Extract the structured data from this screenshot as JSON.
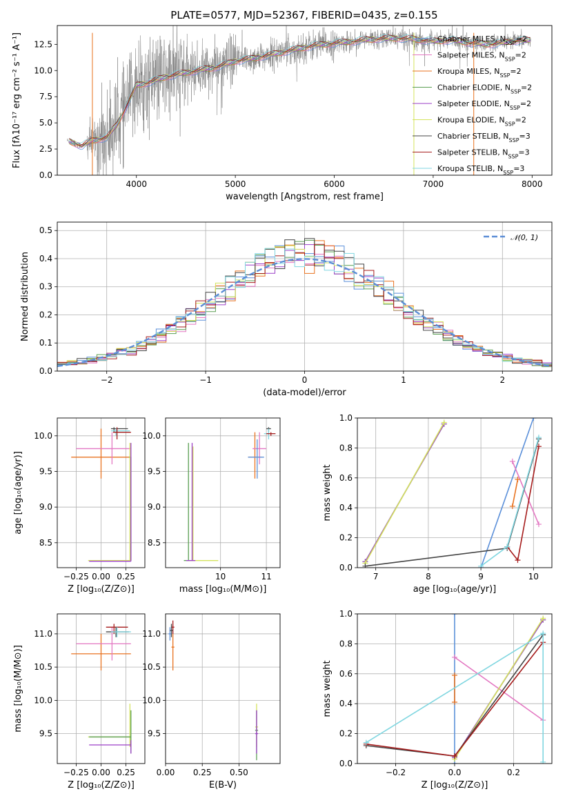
{
  "figure": {
    "title": "PLATE=0577, MJD=52367, FIBERID=0435, z=0.155"
  },
  "models": [
    {
      "name": "Chabrier MILES",
      "nssp": 2,
      "color": "#5a8fd9"
    },
    {
      "name": "Salpeter MILES",
      "nssp": 2,
      "color": "#e377c2"
    },
    {
      "name": "Kroupa MILES",
      "nssp": 2,
      "color": "#e8711d"
    },
    {
      "name": "Chabrier ELODIE",
      "nssp": 2,
      "color": "#5a9e52"
    },
    {
      "name": "Salpeter ELODIE",
      "nssp": 2,
      "color": "#9b3fc7"
    },
    {
      "name": "Kroupa ELODIE",
      "nssp": 2,
      "color": "#d4e35c"
    },
    {
      "name": "Chabrier STELIB",
      "nssp": 3,
      "color": "#444444"
    },
    {
      "name": "Salpeter STELIB",
      "nssp": 3,
      "color": "#a51a1a"
    },
    {
      "name": "Kroupa STELIB",
      "nssp": 3,
      "color": "#7fd6e0"
    }
  ],
  "chart_data": [
    {
      "id": "spectrum",
      "type": "line",
      "xlabel": "wavelength [Angstrom, rest frame]",
      "ylabel": "Flux [fλ10⁻¹⁷ erg cm⁻² s⁻¹ A⁻¹]",
      "xlim": [
        3200,
        8200
      ],
      "ylim": [
        0,
        14.3
      ],
      "xticks": [
        4000,
        5000,
        6000,
        7000,
        8000
      ],
      "yticks": [
        0.0,
        2.5,
        5.0,
        7.5,
        10.0,
        12.5
      ],
      "grid": false,
      "legend": "right",
      "data_color": "#808080",
      "continuum": {
        "x": [
          3300,
          3450,
          3550,
          3700,
          3800,
          3900,
          4000,
          4100,
          4300,
          4500,
          4800,
          5000,
          5200,
          5400,
          5600,
          5800,
          6000,
          6200,
          6400,
          6600,
          6800,
          7000,
          7200,
          7400,
          7600,
          7800,
          8000
        ],
        "y": [
          3.3,
          2.8,
          3.3,
          3.6,
          4.8,
          6.6,
          8.6,
          8.8,
          9.4,
          9.8,
          10.3,
          10.9,
          11.2,
          11.6,
          12.0,
          12.4,
          12.6,
          12.8,
          13.0,
          13.1,
          13.0,
          12.8,
          12.9,
          12.6,
          12.5,
          12.8,
          12.9
        ]
      }
    },
    {
      "id": "residuals",
      "type": "line",
      "xlabel": "(data-model)/error",
      "ylabel": "Normed distribution",
      "xlim": [
        -2.5,
        2.5
      ],
      "ylim": [
        0,
        0.53
      ],
      "xticks": [
        -2,
        -1,
        0,
        1,
        2
      ],
      "yticks": [
        0.0,
        0.1,
        0.2,
        0.3,
        0.4,
        0.5
      ],
      "grid": true,
      "legend": "top-right",
      "normal_label": "𝒩(0, 1)",
      "normal_color": "#5b8dd6",
      "bin_width": 0.1
    },
    {
      "id": "age-vs-z",
      "type": "scatter",
      "xlabel": "Z [log₁₀(Z/Z⊙)]",
      "ylabel": "age  [log₁₀(age/yr)]",
      "xlim": [
        -0.44,
        0.44
      ],
      "ylim": [
        8.15,
        10.25
      ],
      "xticks": [
        -0.25,
        0.0,
        0.25
      ],
      "xtick_labels": [
        "−0.25",
        "0.00",
        "0.25"
      ],
      "yticks": [
        8.5,
        9.0,
        9.5,
        10.0
      ],
      "grid": true
    },
    {
      "id": "age-vs-mass",
      "type": "scatter",
      "xlabel": "mass [log₁₀(M/M⊙)]",
      "ylabel": "",
      "xlim": [
        8.8,
        11.3
      ],
      "ylim": [
        8.15,
        10.25
      ],
      "xticks": [
        10,
        11
      ],
      "yticks": [
        8.5,
        9.0,
        9.5,
        10.0
      ],
      "grid": true
    },
    {
      "id": "weight-vs-age",
      "type": "line",
      "xlabel": "age  [log₁₀(age/yr)]",
      "ylabel": "mass weight",
      "xlim": [
        6.65,
        10.35
      ],
      "ylim": [
        0,
        1.0
      ],
      "xticks": [
        7,
        8,
        9,
        10
      ],
      "yticks": [
        0.0,
        0.2,
        0.4,
        0.6,
        0.8,
        1.0
      ],
      "grid": true
    },
    {
      "id": "mass-vs-z",
      "type": "scatter",
      "xlabel": "Z [log₁₀(Z/Z⊙)]",
      "ylabel": "mass [log₁₀(M/M⊙)]",
      "xlim": [
        -0.44,
        0.44
      ],
      "ylim": [
        9.05,
        11.3
      ],
      "xticks": [
        -0.25,
        0.0,
        0.25
      ],
      "xtick_labels": [
        "−0.25",
        "0.00",
        "0.25"
      ],
      "yticks": [
        9.5,
        10.0,
        10.5,
        11.0
      ],
      "grid": true
    },
    {
      "id": "mass-vs-ebv",
      "type": "scatter",
      "xlabel": "E(B-V)",
      "ylabel": "",
      "xlim": [
        0.0,
        0.78
      ],
      "ylim": [
        9.05,
        11.3
      ],
      "xticks": [
        0.0,
        0.25,
        0.5
      ],
      "xtick_labels": [
        "0.00",
        "0.25",
        "0.50"
      ],
      "yticks": [
        9.5,
        10.0,
        10.5,
        11.0
      ],
      "grid": true
    },
    {
      "id": "weight-vs-z",
      "type": "line",
      "xlabel": "Z [log₁₀(Z/Z⊙)]",
      "ylabel": "mass weight",
      "xlim": [
        -0.33,
        0.33
      ],
      "ylim": [
        0,
        1.0
      ],
      "xticks": [
        -0.2,
        0.0,
        0.2
      ],
      "xtick_labels": [
        "−0.2",
        "0.0",
        "0.2"
      ],
      "yticks": [
        0.0,
        0.2,
        0.4,
        0.6,
        0.8,
        1.0
      ],
      "grid": true
    }
  ],
  "solutions": {
    "age_weights": [
      [
        [
          9.0,
          0.0
        ],
        [
          10.0,
          1.0
        ]
      ],
      [
        [
          9.6,
          0.71
        ],
        [
          10.1,
          0.29
        ]
      ],
      [
        [
          9.6,
          0.41
        ],
        [
          9.7,
          0.59
        ]
      ],
      [
        [
          6.8,
          0.04
        ],
        [
          8.3,
          0.96
        ]
      ],
      [
        [
          6.8,
          0.04
        ],
        [
          8.3,
          0.96
        ]
      ],
      [
        [
          6.8,
          0.03
        ],
        [
          8.3,
          0.97
        ]
      ],
      [
        [
          6.8,
          0.01
        ],
        [
          9.5,
          0.13
        ],
        [
          10.1,
          0.86
        ]
      ],
      [
        [
          9.5,
          0.14
        ],
        [
          9.7,
          0.05
        ],
        [
          10.1,
          0.81
        ]
      ],
      [
        [
          9.0,
          0.01
        ],
        [
          9.5,
          0.14
        ],
        [
          10.1,
          0.87
        ]
      ]
    ],
    "z_weights": [
      [
        [
          0.0,
          0.0
        ],
        [
          0.0,
          1.0
        ]
      ],
      [
        [
          0.0,
          0.71
        ],
        [
          0.3,
          0.29
        ]
      ],
      [
        [
          0.0,
          0.41
        ],
        [
          0.0,
          0.59
        ]
      ],
      [
        [
          0.0,
          0.04
        ],
        [
          0.3,
          0.96
        ]
      ],
      [
        [
          0.0,
          0.04
        ],
        [
          0.3,
          0.96
        ]
      ],
      [
        [
          0.0,
          0.03
        ],
        [
          0.3,
          0.97
        ]
      ],
      [
        [
          -0.3,
          0.12
        ],
        [
          0.0,
          0.05
        ],
        [
          0.3,
          0.86
        ]
      ],
      [
        [
          -0.3,
          0.13
        ],
        [
          0.0,
          0.05
        ],
        [
          0.3,
          0.81
        ]
      ],
      [
        [
          -0.3,
          0.14
        ],
        [
          0.3,
          0.87
        ],
        [
          0.3,
          0.01
        ]
      ]
    ],
    "age_z_errorbars": [
      {
        "z": 0.0,
        "zl": -0.3,
        "zh": 0.3,
        "age": 9.7,
        "agel": 9.4,
        "ageh": 10.1,
        "m": 2
      },
      {
        "z": 0.11,
        "zl": -0.25,
        "zh": 0.3,
        "age": 9.82,
        "agel": 9.6,
        "ageh": 10.05,
        "m": 1
      },
      {
        "z": 0.13,
        "zl": 0.1,
        "zh": 0.27,
        "age": 10.1,
        "agel": 10.05,
        "ageh": 10.12,
        "m": 6
      },
      {
        "z": 0.15,
        "zl": 0.1,
        "zh": 0.29,
        "age": 10.07,
        "agel": 10.0,
        "ageh": 10.1,
        "m": 8
      },
      {
        "z": 0.16,
        "zl": 0.12,
        "zh": 0.3,
        "age": 10.05,
        "agel": 9.95,
        "ageh": 10.12,
        "m": 7
      },
      {
        "z": 0.3,
        "zl": 0.28,
        "zh": 0.3,
        "age": 9.7,
        "agel": 8.25,
        "ageh": 9.7,
        "m": 3
      },
      {
        "z": 0.29,
        "zl": -0.13,
        "zh": 0.3,
        "age": 8.25,
        "agel": 8.25,
        "ageh": 9.9,
        "m": 5
      },
      {
        "z": 0.3,
        "zl": -0.12,
        "zh": 0.3,
        "age": 8.24,
        "agel": 8.24,
        "ageh": 9.9,
        "m": 4
      }
    ],
    "age_mass_errorbars": [
      {
        "mass": 10.75,
        "massl": 10.6,
        "massh": 10.9,
        "age": 9.7,
        "agel": 9.4,
        "ageh": 10.05,
        "m": 2
      },
      {
        "mass": 10.85,
        "massl": 10.7,
        "massh": 11.0,
        "age": 9.82,
        "agel": 9.6,
        "ageh": 10.05,
        "m": 1
      },
      {
        "mass": 10.8,
        "massl": 10.6,
        "massh": 10.95,
        "age": 9.7,
        "agel": 9.4,
        "ageh": 9.95,
        "m": 0
      },
      {
        "mass": 11.05,
        "massl": 11.0,
        "massh": 11.1,
        "age": 10.1,
        "agel": 10.05,
        "ageh": 10.12,
        "m": 6
      },
      {
        "mass": 11.05,
        "massl": 10.95,
        "massh": 11.15,
        "age": 10.03,
        "agel": 9.95,
        "ageh": 10.1,
        "m": 8
      },
      {
        "mass": 11.1,
        "massl": 11.0,
        "massh": 11.2,
        "age": 10.03,
        "agel": 10.0,
        "ageh": 10.05,
        "m": 7
      },
      {
        "mass": 9.3,
        "massl": 9.2,
        "massh": 9.35,
        "age": 8.25,
        "agel": 8.25,
        "ageh": 9.9,
        "m": 3
      },
      {
        "mass": 9.4,
        "massl": 9.3,
        "massh": 9.95,
        "age": 8.25,
        "agel": 8.25,
        "ageh": 9.85,
        "m": 5
      },
      {
        "mass": 9.38,
        "massl": 9.25,
        "massh": 9.45,
        "age": 8.25,
        "agel": 8.25,
        "ageh": 9.9,
        "m": 4
      }
    ],
    "mass_z_errorbars": [
      {
        "z": 0.0,
        "zl": -0.3,
        "zh": 0.3,
        "mass": 10.7,
        "massl": 10.45,
        "massh": 11.0,
        "m": 2
      },
      {
        "z": 0.11,
        "zl": -0.25,
        "zh": 0.3,
        "mass": 10.85,
        "massl": 10.6,
        "massh": 11.1,
        "m": 1
      },
      {
        "z": 0.13,
        "zl": 0.05,
        "zh": 0.27,
        "mass": 11.1,
        "massl": 11.0,
        "massh": 11.15,
        "m": 7
      },
      {
        "z": 0.15,
        "zl": 0.05,
        "zh": 0.28,
        "mass": 11.03,
        "massl": 10.95,
        "massh": 11.1,
        "m": 6
      },
      {
        "z": 0.16,
        "zl": 0.1,
        "zh": 0.3,
        "mass": 11.03,
        "massl": 10.95,
        "massh": 11.1,
        "m": 8
      },
      {
        "z": 0.29,
        "zl": -0.13,
        "zh": 0.3,
        "mass": 9.45,
        "massl": 9.3,
        "massh": 9.95,
        "m": 5
      },
      {
        "z": 0.3,
        "zl": -0.12,
        "zh": 0.3,
        "mass": 9.45,
        "massl": 9.2,
        "massh": 9.85,
        "m": 3
      },
      {
        "z": 0.3,
        "zl": -0.12,
        "zh": 0.3,
        "mass": 9.33,
        "massl": 9.2,
        "massh": 9.4,
        "m": 4
      }
    ],
    "mass_ebv_errorbars": [
      {
        "ebv": 0.03,
        "ebvl": 0.02,
        "ebvh": 0.04,
        "mass": 11.0,
        "massl": 10.9,
        "massh": 11.1,
        "m": 0
      },
      {
        "ebv": 0.05,
        "ebvl": 0.04,
        "ebvh": 0.06,
        "mass": 10.8,
        "massl": 10.45,
        "massh": 11.0,
        "m": 2
      },
      {
        "ebv": 0.05,
        "ebvl": 0.04,
        "ebvh": 0.06,
        "mass": 11.1,
        "massl": 11.0,
        "massh": 11.2,
        "m": 7
      },
      {
        "ebv": 0.04,
        "ebvl": 0.03,
        "ebvh": 0.05,
        "mass": 11.05,
        "massl": 10.95,
        "massh": 11.15,
        "m": 6
      },
      {
        "ebv": 0.62,
        "ebvl": 0.61,
        "ebvh": 0.63,
        "mass": 9.6,
        "massl": 9.3,
        "massh": 9.95,
        "m": 5
      },
      {
        "ebv": 0.62,
        "ebvl": 0.61,
        "ebvh": 0.63,
        "mass": 9.55,
        "massl": 9.1,
        "massh": 9.85,
        "m": 3
      },
      {
        "ebv": 0.62,
        "ebvl": 0.61,
        "ebvh": 0.63,
        "mass": 9.5,
        "massl": 9.2,
        "massh": 9.85,
        "m": 4
      }
    ]
  }
}
